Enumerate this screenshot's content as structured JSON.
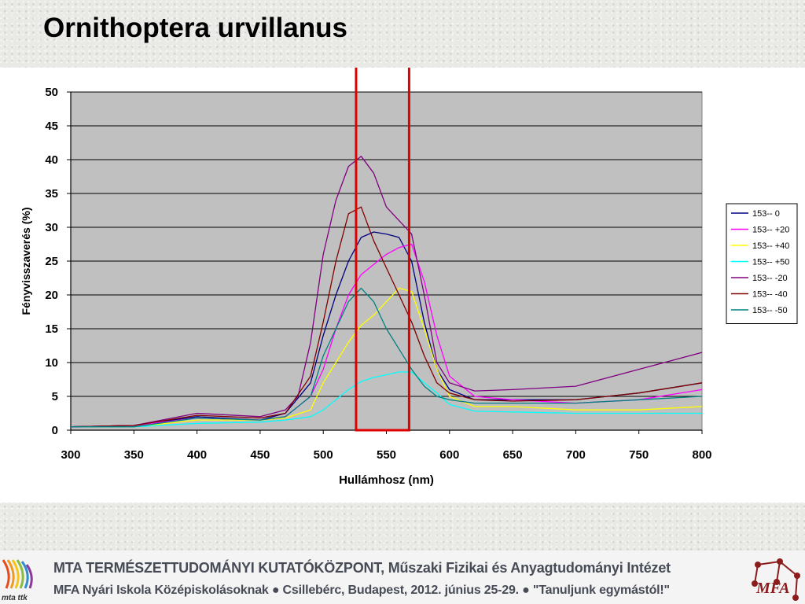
{
  "slide": {
    "title": "Ornithoptera urvillanus"
  },
  "footer": {
    "line1": "MTA  TERMÉSZETTUDOMÁNYI  KUTATÓKÖZPONT, Műszaki Fizikai és Anyagtudományi Intézet",
    "line2": "MFA Nyári Iskola Középiskolásoknak ● Csillebérc, Budapest, 2012. június 25-29. ● \"Tanuljunk egymástól!\"",
    "left_logo_text": "mta ttk",
    "right_logo_text": "MFA"
  },
  "chart_data": {
    "type": "line",
    "title": "",
    "xlabel": "Hullámhosz (nm)",
    "ylabel": "Fényvisszaverés (%)",
    "xlim": [
      300,
      800
    ],
    "ylim": [
      0,
      50
    ],
    "xticks": [
      300,
      350,
      400,
      450,
      500,
      550,
      600,
      650,
      700,
      750,
      800
    ],
    "yticks": [
      0,
      5,
      10,
      15,
      20,
      25,
      30,
      35,
      40,
      45,
      50
    ],
    "grid": "horizontal",
    "plot_background": "#c0c0c0",
    "legend_position": "right",
    "highlight_box": {
      "x_range": [
        526,
        568
      ],
      "y_range": [
        0,
        54
      ],
      "color": "#e00000"
    },
    "series": [
      {
        "name": "153-- 0",
        "color": "#000080",
        "x": [
          300,
          350,
          400,
          450,
          470,
          490,
          500,
          510,
          520,
          530,
          540,
          550,
          560,
          570,
          580,
          590,
          600,
          620,
          650,
          700,
          750,
          800
        ],
        "y": [
          0.5,
          0.7,
          2.0,
          1.5,
          2.5,
          7,
          14,
          20,
          25,
          28.5,
          29.3,
          29,
          28.5,
          25,
          16,
          9,
          6,
          4.5,
          4.5,
          4.5,
          5.5,
          7
        ]
      },
      {
        "name": "153-- +20",
        "color": "#ff00ff",
        "x": [
          300,
          350,
          400,
          450,
          470,
          490,
          500,
          510,
          520,
          530,
          540,
          550,
          560,
          570,
          580,
          590,
          600,
          620,
          650,
          700,
          750,
          800
        ],
        "y": [
          0.5,
          0.7,
          1.8,
          1.5,
          2,
          5,
          9,
          15,
          20,
          23,
          24.5,
          26,
          27,
          27.5,
          22,
          14,
          8,
          5,
          4.5,
          4,
          4.5,
          6
        ]
      },
      {
        "name": "153-- +40",
        "color": "#ffff00",
        "x": [
          300,
          350,
          400,
          450,
          470,
          490,
          500,
          510,
          520,
          530,
          540,
          550,
          560,
          570,
          580,
          590,
          600,
          620,
          650,
          700,
          750,
          800
        ],
        "y": [
          0.5,
          0.5,
          1.5,
          1.5,
          1.8,
          3,
          7,
          10,
          13,
          15.5,
          17,
          19,
          21,
          20.5,
          15,
          9,
          5,
          3.5,
          3.5,
          3,
          3,
          3.5
        ]
      },
      {
        "name": "153-- +50",
        "color": "#00ffff",
        "x": [
          300,
          350,
          400,
          450,
          470,
          490,
          500,
          510,
          520,
          530,
          540,
          550,
          560,
          570,
          580,
          590,
          600,
          620,
          650,
          700,
          750,
          800
        ],
        "y": [
          0.5,
          0.5,
          1.0,
          1.2,
          1.5,
          2,
          3,
          4.5,
          6,
          7.2,
          7.8,
          8.2,
          8.6,
          8.6,
          7,
          5.5,
          3.8,
          2.8,
          2.7,
          2.5,
          2.5,
          2.5
        ]
      },
      {
        "name": "153-- -20",
        "color": "#800080",
        "x": [
          300,
          350,
          400,
          450,
          470,
          480,
          490,
          500,
          510,
          520,
          530,
          540,
          550,
          560,
          570,
          580,
          590,
          600,
          620,
          650,
          700,
          750,
          800
        ],
        "y": [
          0.5,
          0.7,
          2.5,
          2,
          3,
          5,
          13,
          26,
          34,
          39,
          40.5,
          38,
          33,
          31,
          29,
          20,
          10,
          7,
          5.8,
          6,
          6.5,
          9,
          11.5
        ]
      },
      {
        "name": "153-- -40",
        "color": "#800000",
        "x": [
          300,
          350,
          400,
          450,
          470,
          490,
          500,
          510,
          520,
          530,
          540,
          550,
          560,
          570,
          580,
          590,
          600,
          620,
          650,
          700,
          750,
          800
        ],
        "y": [
          0.5,
          0.7,
          2.2,
          1.8,
          2.5,
          8,
          16,
          25,
          32,
          33,
          28,
          24,
          20,
          16,
          11,
          7,
          5.5,
          4.5,
          4.3,
          4.5,
          5.5,
          7
        ]
      },
      {
        "name": "153-- -50",
        "color": "#008080",
        "x": [
          300,
          350,
          400,
          450,
          470,
          490,
          500,
          510,
          520,
          530,
          540,
          550,
          560,
          570,
          580,
          590,
          600,
          620,
          650,
          700,
          750,
          800
        ],
        "y": [
          0.5,
          0.5,
          1.8,
          1.5,
          2,
          5,
          11,
          15,
          19,
          21,
          19,
          15,
          12,
          9,
          6.5,
          5,
          4.5,
          4,
          4,
          4,
          4.5,
          5
        ]
      }
    ]
  }
}
